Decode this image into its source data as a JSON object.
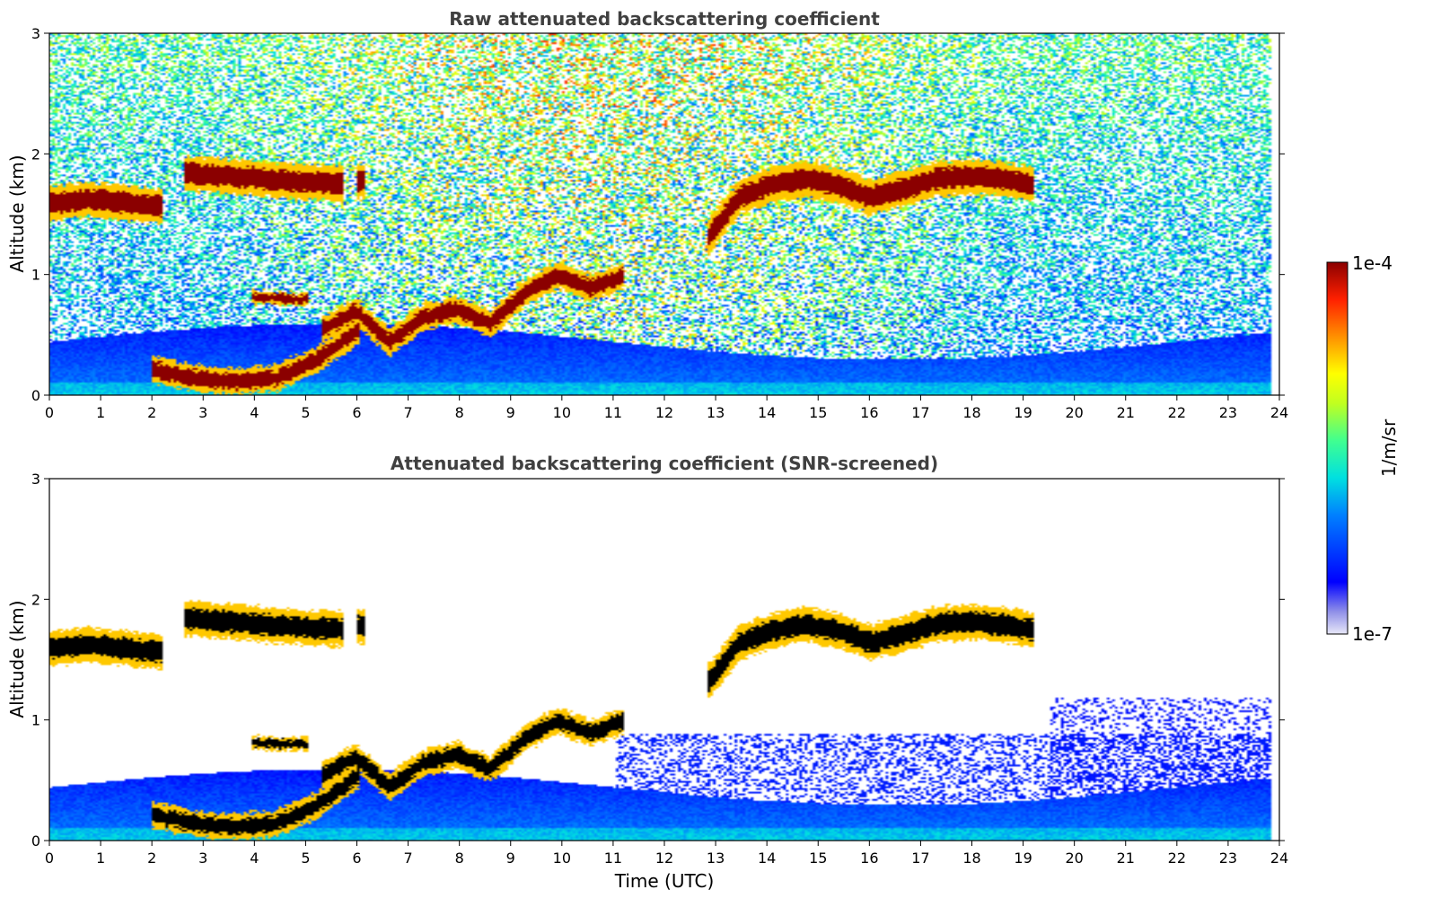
{
  "chart_data": [
    {
      "type": "heatmap",
      "title": "Raw attenuated backscattering coefficient",
      "xlabel": "",
      "ylabel": "Altitude (km)",
      "xlim": [
        0,
        24
      ],
      "ylim": [
        0,
        3
      ],
      "x_ticks": [
        "0",
        "1",
        "2",
        "3",
        "4",
        "5",
        "6",
        "7",
        "8",
        "9",
        "10",
        "11",
        "12",
        "13",
        "14",
        "15",
        "16",
        "17",
        "18",
        "19",
        "20",
        "21",
        "22",
        "23",
        "24"
      ],
      "y_ticks": [
        "0",
        "1",
        "2",
        "3"
      ],
      "data_end_time": 23.8,
      "features": [
        {
          "kind": "cloud",
          "t0": 0.0,
          "t1": 2.2,
          "alt": [
            1.6,
            1.63,
            1.6,
            1.57
          ]
        },
        {
          "kind": "cloud",
          "t0": 2.6,
          "t1": 5.7,
          "alt": [
            1.85,
            1.82,
            1.78,
            1.76
          ]
        },
        {
          "kind": "cloud",
          "t0": 6.0,
          "t1": 6.15,
          "alt": [
            1.78,
            1.78
          ]
        },
        {
          "kind": "cloud",
          "t0": 12.8,
          "t1": 19.2,
          "alt": [
            1.3,
            1.65,
            1.75,
            1.8,
            1.75,
            1.65,
            1.72,
            1.8,
            1.82,
            1.8,
            1.75
          ]
        },
        {
          "kind": "low_cloud",
          "t0": 2.0,
          "t1": 6.0,
          "alt": [
            0.22,
            0.15,
            0.12,
            0.15,
            0.3,
            0.55
          ]
        },
        {
          "kind": "rising_layer",
          "t0": 5.3,
          "t1": 11.2,
          "alt": [
            0.55,
            0.7,
            0.45,
            0.65,
            0.72,
            0.6,
            0.85,
            1.0,
            0.9,
            1.0
          ]
        },
        {
          "kind": "faint_layer",
          "t0": 3.9,
          "t1": 5.0,
          "alt": [
            0.82,
            0.8
          ]
        }
      ],
      "screened": false
    },
    {
      "type": "heatmap",
      "title": "Attenuated backscattering coefficient (SNR-screened)",
      "xlabel": "Time (UTC)",
      "ylabel": "Altitude (km)",
      "xlim": [
        0,
        24
      ],
      "ylim": [
        0,
        3
      ],
      "x_ticks": [
        "0",
        "1",
        "2",
        "3",
        "4",
        "5",
        "6",
        "7",
        "8",
        "9",
        "10",
        "11",
        "12",
        "13",
        "14",
        "15",
        "16",
        "17",
        "18",
        "19",
        "20",
        "21",
        "22",
        "23",
        "24"
      ],
      "y_ticks": [
        "0",
        "1",
        "2",
        "3"
      ],
      "data_end_time": 23.8,
      "screened": true
    }
  ],
  "colorbar": {
    "label": "1/m/sr",
    "max_label": "1e-4",
    "min_label": "1e-7",
    "colormap": "jet",
    "scale": "log"
  },
  "colors": {
    "title": "#404040",
    "saturated": "#8b0000",
    "screened_peak": "#000000"
  }
}
